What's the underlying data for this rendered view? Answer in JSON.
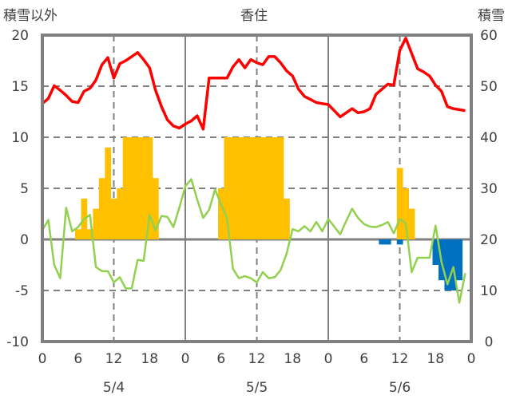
{
  "chart_data": {
    "type": "bar+line",
    "title": "香住",
    "ylabel_left": "積雪以外",
    "ylabel_right": "積雪",
    "ylim_left": [
      -10,
      20
    ],
    "ylim_right": [
      0,
      60
    ],
    "yticks_left": [
      "20",
      "15",
      "10",
      "5",
      "0",
      "-5",
      "-10"
    ],
    "yticks_right": [
      "60",
      "50",
      "40",
      "30",
      "20",
      "10",
      "0"
    ],
    "x_unit": "hour since 5/4 0:00",
    "xlim": [
      0,
      72
    ],
    "xticks": [
      "0",
      "6",
      "12",
      "18",
      "0",
      "6",
      "12",
      "18",
      "0",
      "6",
      "12",
      "18",
      "0"
    ],
    "date_labels": [
      "5/4",
      "5/5",
      "5/6"
    ],
    "grid": true,
    "legend": "none",
    "colors": {
      "red_line": "#ff0000",
      "green_line": "#92d050",
      "orange_bars": "#ffc000",
      "blue_bars": "#0070c0",
      "axis": "#808080"
    },
    "series": [
      {
        "name": "red line",
        "type": "line",
        "axis": "left",
        "values": [
          13.3,
          13.8,
          15.05,
          14.6,
          14.1,
          13.5,
          13.4,
          14.5,
          14.8,
          15.6,
          17.1,
          17.8,
          15.8,
          17.2,
          17.5,
          17.9,
          18.3,
          17.6,
          16.8,
          14.6,
          13.0,
          11.7,
          11.1,
          10.9,
          11.3,
          11.6,
          12.1,
          10.8,
          15.8,
          15.8,
          15.8,
          15.8,
          16.9,
          17.6,
          16.8,
          17.6,
          17.3,
          17.1,
          17.9,
          17.9,
          17.3,
          16.5,
          16.0,
          14.7,
          14.0,
          13.7,
          13.4,
          13.3,
          13.2,
          12.6,
          12.0,
          12.4,
          12.8,
          12.4,
          12.5,
          12.8,
          14.2,
          14.7,
          15.2,
          15.1,
          18.5,
          19.7,
          18.2,
          16.7,
          16.4,
          16.0,
          15.1,
          14.5,
          13.0,
          12.8,
          12.7,
          12.6
        ]
      },
      {
        "name": "green line",
        "type": "line",
        "axis": "left",
        "values": [
          0.9,
          1.9,
          -2.5,
          -3.8,
          3.1,
          0.8,
          1.2,
          2.0,
          2.4,
          -2.7,
          -3.1,
          -3.1,
          -4.2,
          -3.7,
          -4.8,
          -4.8,
          -2.0,
          -2.1,
          2.4,
          0.9,
          2.3,
          2.2,
          1.2,
          3.1,
          5.2,
          5.9,
          3.9,
          2.1,
          2.9,
          4.9,
          3.4,
          2.1,
          -2.9,
          -3.8,
          -3.6,
          -3.8,
          -4.2,
          -3.2,
          -3.8,
          -3.7,
          -3.0,
          -1.4,
          1.0,
          0.8,
          1.3,
          0.8,
          1.7,
          0.8,
          2.0,
          1.25,
          0.5,
          1.8,
          3.0,
          2.1,
          1.5,
          1.25,
          1.2,
          1.4,
          1.7,
          0.6,
          2.0,
          1.6,
          -3.2,
          -1.8,
          -1.8,
          -1.8,
          1.35,
          -2.2,
          -4.4,
          -2.7,
          -6.2,
          -3.3
        ]
      },
      {
        "name": "orange bars",
        "type": "bar",
        "axis": "left",
        "x": [
          6,
          7,
          8,
          9,
          10,
          11,
          12,
          13,
          14,
          15,
          16,
          17,
          18,
          19,
          30,
          31,
          32,
          33,
          34,
          35,
          36,
          37,
          38,
          39,
          40,
          41,
          60,
          61,
          62
        ],
        "values": [
          1,
          4,
          1,
          3,
          6,
          9,
          4,
          5,
          10,
          10,
          10,
          10,
          10,
          6,
          5,
          10,
          10,
          10,
          10,
          10,
          10,
          10,
          10,
          10,
          10,
          4,
          7,
          5,
          3
        ]
      },
      {
        "name": "blue bars",
        "type": "bar",
        "axis": "left",
        "x": [
          57,
          58,
          60,
          66,
          67,
          68,
          69,
          70
        ],
        "values": [
          -0.5,
          -0.5,
          -0.5,
          -2.5,
          -4,
          -5,
          -5,
          -4
        ]
      }
    ]
  }
}
